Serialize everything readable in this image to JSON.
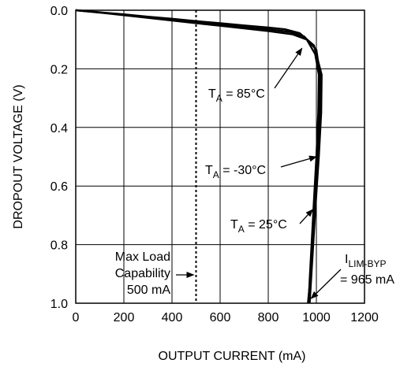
{
  "chart_data": {
    "type": "line",
    "xlabel": "OUTPUT CURRENT (mA)",
    "ylabel": "DROPOUT VOLTAGE (V)",
    "xlim": [
      0,
      1200
    ],
    "ylim": [
      0,
      1.0
    ],
    "y_inverted": true,
    "grid": true,
    "xticks": [
      0,
      200,
      400,
      600,
      800,
      1000,
      1200
    ],
    "xtick_labels": [
      "0",
      "200",
      "400",
      "600",
      "800",
      "1000",
      "1200"
    ],
    "yticks": [
      0.0,
      0.2,
      0.4,
      0.6,
      0.8,
      1.0
    ],
    "ytick_labels": [
      "0.0",
      "0.2",
      "0.4",
      "0.6",
      "0.8",
      "1.0"
    ],
    "series": [
      {
        "name": "TA = 85°C",
        "x": [
          0,
          100,
          200,
          300,
          400,
          500,
          600,
          700,
          800,
          900,
          960,
          995,
          1010,
          1008,
          1000,
          990,
          980,
          972,
          968
        ],
        "y": [
          0.0,
          0.008,
          0.017,
          0.026,
          0.035,
          0.044,
          0.053,
          0.062,
          0.071,
          0.082,
          0.1,
          0.15,
          0.22,
          0.35,
          0.5,
          0.65,
          0.8,
          0.92,
          1.0
        ]
      },
      {
        "name": "TA = -30°C",
        "x": [
          0,
          100,
          200,
          300,
          400,
          500,
          600,
          700,
          800,
          870,
          930,
          990,
          1022,
          1020,
          1010,
          998,
          987,
          978,
          972
        ],
        "y": [
          0.0,
          0.007,
          0.014,
          0.022,
          0.029,
          0.037,
          0.044,
          0.052,
          0.059,
          0.065,
          0.078,
          0.12,
          0.22,
          0.35,
          0.5,
          0.65,
          0.8,
          0.92,
          1.0
        ]
      },
      {
        "name": "TA = 25°C",
        "x": [
          0,
          100,
          200,
          300,
          400,
          500,
          600,
          700,
          800,
          890,
          950,
          1000,
          1015,
          1013,
          1004,
          993,
          983,
          974,
          965
        ],
        "y": [
          0.0,
          0.0075,
          0.0155,
          0.024,
          0.032,
          0.0405,
          0.0485,
          0.057,
          0.065,
          0.074,
          0.09,
          0.135,
          0.22,
          0.35,
          0.5,
          0.65,
          0.8,
          0.92,
          1.0
        ]
      }
    ],
    "reference_lines": [
      {
        "orientation": "vertical",
        "x": 500,
        "style": "dotted"
      }
    ],
    "annotations": [
      {
        "lines": [
          "Max Load",
          "Capability",
          "500 mA"
        ]
      },
      {
        "main": "T",
        "sub": "A",
        "rest": " = 85°C",
        "points_to": {
          "x": 940,
          "y": 0.13
        }
      },
      {
        "main": "T",
        "sub": "A",
        "rest": " = -30°C",
        "points_to": {
          "x": 1000,
          "y": 0.5
        }
      },
      {
        "main": "T",
        "sub": "A",
        "rest": " = 25°C",
        "points_to": {
          "x": 985,
          "y": 0.68
        }
      },
      {
        "main": "I",
        "sub": "LIM-BYP",
        "rest": "= 965 mA",
        "points_to": {
          "x": 965,
          "y": 1.0
        }
      }
    ]
  }
}
